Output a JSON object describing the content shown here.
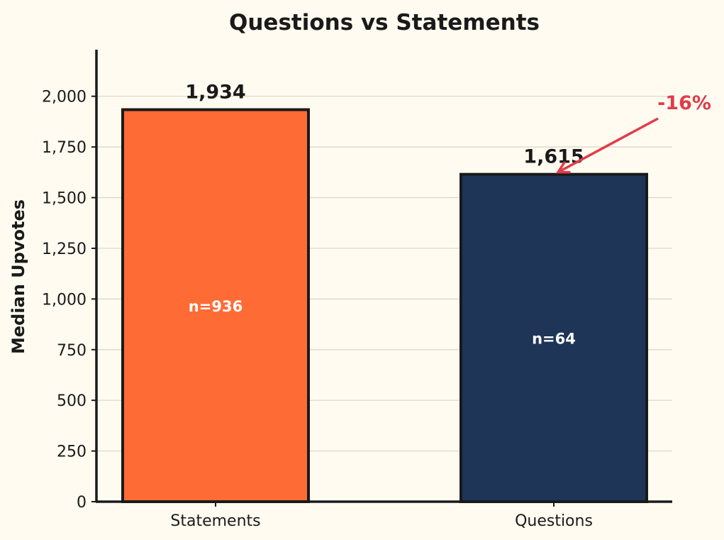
{
  "chart_data": {
    "type": "bar",
    "title": "Questions vs Statements",
    "xlabel": "",
    "ylabel": "Median Upvotes",
    "ylim": [
      0,
      2230
    ],
    "yticks": [
      0,
      250,
      500,
      750,
      1000,
      1250,
      1500,
      1750,
      2000
    ],
    "ytick_labels": [
      "0",
      "250",
      "500",
      "750",
      "1,000",
      "1,250",
      "1,500",
      "1,750",
      "2,000"
    ],
    "grid": "y",
    "categories": [
      "Statements",
      "Questions"
    ],
    "values": [
      1934,
      1615
    ],
    "value_labels": [
      "1,934",
      "1,615"
    ],
    "counts": [
      "n=936",
      "n=64"
    ],
    "colors": [
      "#ff6b35",
      "#1e3557"
    ],
    "annotation": {
      "text": "-16%",
      "color": "#e03c4a",
      "target": "Questions"
    }
  }
}
